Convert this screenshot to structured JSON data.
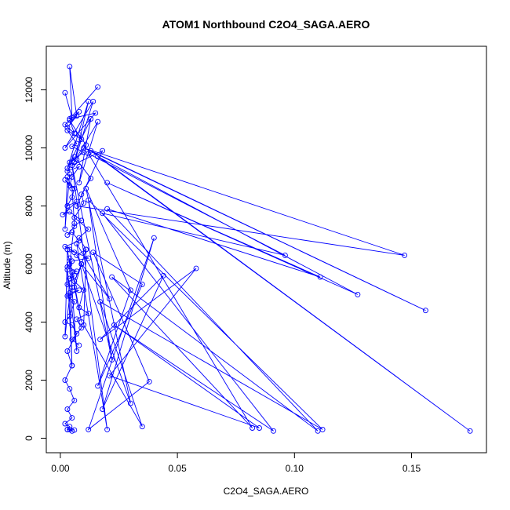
{
  "chart_data": {
    "type": "line",
    "title": "ATOM1 Northbound C2O4_SAGA.AERO",
    "xlabel": "C2O4_SAGA.AERO",
    "ylabel": "Altitude (m)",
    "xlim": [
      -0.006,
      0.182
    ],
    "ylim": [
      -500,
      13500
    ],
    "x_ticks": [
      0.0,
      0.05,
      0.1,
      0.15
    ],
    "x_tick_labels": [
      "0.00",
      "0.05",
      "0.10",
      "0.15"
    ],
    "y_ticks": [
      0,
      2000,
      4000,
      6000,
      8000,
      10000,
      12000
    ],
    "y_tick_labels": [
      "0",
      "2000",
      "4000",
      "6000",
      "8000",
      "10000",
      "12000"
    ],
    "grid": false,
    "legend": "none",
    "colors": {
      "series": "#0000ff",
      "axes": "#000000"
    },
    "series": [
      {
        "x": [
          0.002,
          0.005,
          0.004,
          0.007,
          0.003,
          0.008,
          0.002,
          0.006,
          0.004,
          0.009,
          0.003,
          0.007,
          0.005,
          0.01,
          0.004,
          0.006,
          0.003,
          0.008,
          0.005,
          0.004,
          0.002,
          0.006,
          0.005,
          0.003,
          0.007,
          0.001,
          0.004,
          0.009,
          0.006,
          0.003,
          0.005,
          0.008,
          0.002,
          0.006,
          0.004,
          0.012,
          0.005,
          0.003,
          0.007,
          0.005,
          0.004,
          0.006,
          0.003,
          0.005,
          0.004,
          0.008,
          0.003,
          0.006,
          0.004,
          0.002,
          0.005,
          0.007,
          0.003,
          0.005,
          0.002,
          0.004,
          0.006,
          0.003,
          0.005,
          0.002,
          0.004,
          0.003,
          0.006,
          0.004,
          0.005,
          0.003
        ],
        "y": [
          11900,
          11050,
          12800,
          11100,
          10700,
          11250,
          10800,
          10500,
          10950,
          10300,
          10600,
          10150,
          10050,
          9850,
          9500,
          9700,
          9200,
          9350,
          9000,
          8700,
          8900,
          8600,
          8300,
          8000,
          8150,
          7700,
          7800,
          7500,
          7300,
          7000,
          7100,
          6800,
          6600,
          6400,
          6500,
          6200,
          6100,
          5900,
          5750,
          5700,
          5500,
          5600,
          5300,
          5200,
          5000,
          5100,
          4900,
          4700,
          4200,
          4000,
          3900,
          3600,
          3000,
          2500,
          2000,
          1700,
          1300,
          1000,
          700,
          500,
          400,
          300,
          280,
          300,
          250,
          300
        ]
      },
      {
        "x": [
          0.016,
          0.004,
          0.015,
          0.002,
          0.014,
          0.006,
          0.012,
          0.003,
          0.013,
          0.008,
          0.016,
          0.005,
          0.018,
          0.007,
          0.147,
          0.01,
          0.156,
          0.013,
          0.175,
          0.016,
          0.127,
          0.02,
          0.111,
          0.02,
          0.11,
          0.022,
          0.082,
          0.012,
          0.096,
          0.018,
          0.091,
          0.023,
          0.085,
          0.021,
          0.058,
          0.017,
          0.044,
          0.018,
          0.04,
          0.012,
          0.038,
          0.014,
          0.035,
          0.016,
          0.03,
          0.011,
          0.03,
          0.009,
          0.021,
          0.007,
          0.02,
          0.005,
          0.022,
          0.012,
          0.112,
          0.017,
          0.035,
          0.01,
          0.011,
          0.006,
          0.009,
          0.004,
          0.007,
          0.003,
          0.005,
          0.004,
          0.002,
          0.003,
          0.004,
          0.006,
          0.005,
          0.003,
          0.002,
          0.004
        ],
        "y": [
          12100,
          11000,
          11200,
          10000,
          11600,
          9500,
          11600,
          9300,
          11000,
          8800,
          10900,
          9400,
          9900,
          8000,
          6300,
          10000,
          4400,
          9900,
          250,
          9700,
          4950,
          8800,
          5550,
          7900,
          250,
          5550,
          350,
          9800,
          6300,
          7750,
          250,
          3900,
          350,
          2150,
          5850,
          3400,
          5600,
          1000,
          6900,
          300,
          1950,
          6400,
          5300,
          1800,
          5100,
          8600,
          1200,
          6000,
          4800,
          6700,
          300,
          9400,
          2700,
          8200,
          300,
          4700,
          400,
          3900,
          6500,
          5200,
          4000,
          6200,
          3000,
          5800,
          2500,
          4900,
          3500,
          6500,
          6000,
          7400,
          8600,
          9000,
          7200,
          9100
        ]
      },
      {
        "x": [
          0.008,
          0.011,
          0.007,
          0.013,
          0.009,
          0.01,
          0.006,
          0.012,
          0.008,
          0.011,
          0.007,
          0.009,
          0.006,
          0.01,
          0.008,
          0.012,
          0.007,
          0.009,
          0.005,
          0.008
        ],
        "y": [
          10450,
          10100,
          9600,
          8950,
          8400,
          8100,
          7600,
          7200,
          6900,
          6500,
          6300,
          6000,
          5400,
          5100,
          4500,
          4300,
          4100,
          3800,
          3400,
          3200
        ]
      }
    ]
  }
}
